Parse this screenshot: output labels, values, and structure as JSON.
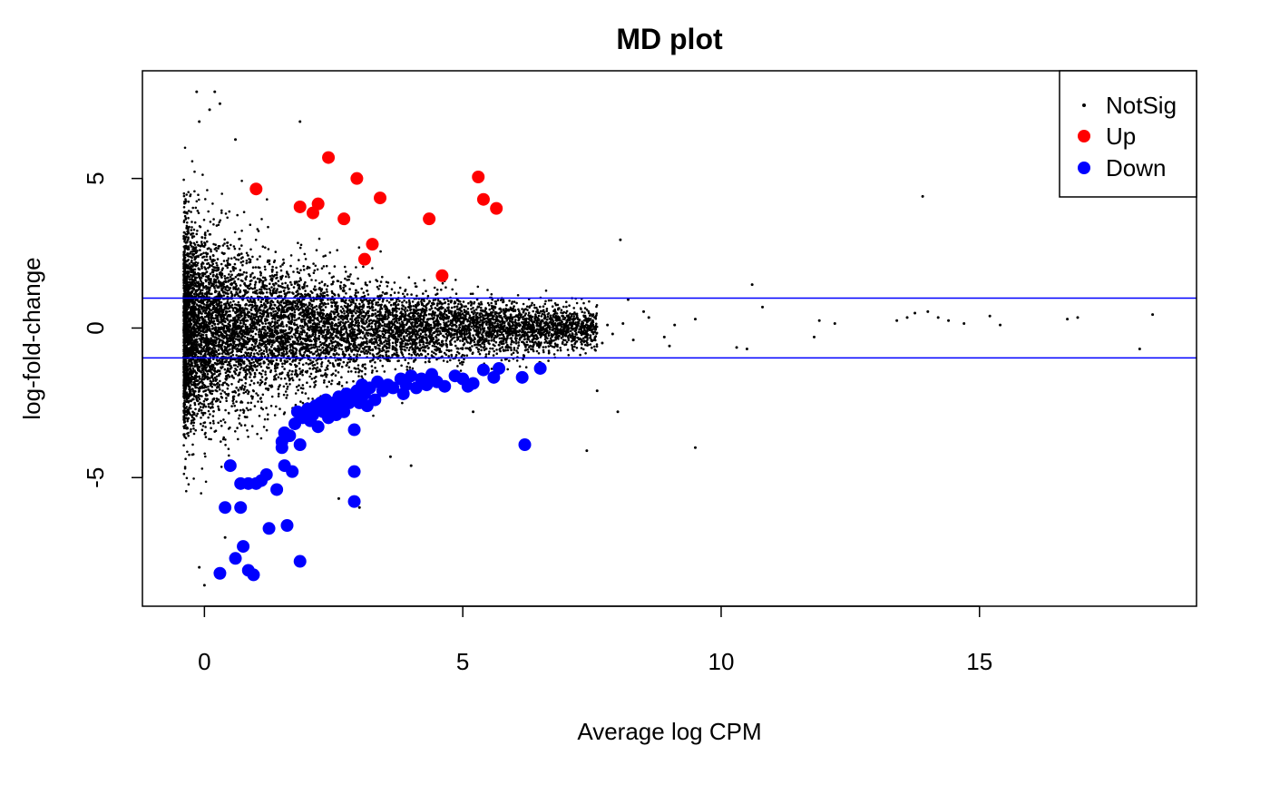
{
  "chart_data": {
    "type": "scatter",
    "title": "MD plot",
    "xlabel": "Average log CPM",
    "ylabel": "log-fold-change",
    "xlim": [
      -1.2,
      19.2
    ],
    "ylim": [
      -9.3,
      8.6
    ],
    "x_ticks": [
      0,
      5,
      10,
      15
    ],
    "y_ticks": [
      -5,
      0,
      5
    ],
    "x_tick_labels": [
      "0",
      "5",
      "10",
      "15"
    ],
    "y_tick_labels": [
      "-5",
      "0",
      "5"
    ],
    "hlines": [
      1,
      -1
    ],
    "hline_color": "#0000ff",
    "grid": false,
    "legend_position": "top-right",
    "legend": [
      {
        "label": "NotSig",
        "color": "#000000",
        "marker": "small-dot"
      },
      {
        "label": "Up",
        "color": "#ff0000",
        "marker": "dot"
      },
      {
        "label": "Down",
        "color": "#0000ff",
        "marker": "dot"
      }
    ],
    "series": [
      {
        "name": "Up",
        "color": "#ff0000",
        "points": [
          [
            1.0,
            4.65
          ],
          [
            1.85,
            4.05
          ],
          [
            2.1,
            3.85
          ],
          [
            2.2,
            4.15
          ],
          [
            2.4,
            5.7
          ],
          [
            2.7,
            3.65
          ],
          [
            2.95,
            5.0
          ],
          [
            3.1,
            2.3
          ],
          [
            3.25,
            2.8
          ],
          [
            3.4,
            4.35
          ],
          [
            4.35,
            3.65
          ],
          [
            4.6,
            1.75
          ],
          [
            5.3,
            5.05
          ],
          [
            5.4,
            4.3
          ],
          [
            5.65,
            4.0
          ]
        ]
      },
      {
        "name": "Down",
        "color": "#0000ff",
        "points": [
          [
            0.3,
            -8.2
          ],
          [
            0.4,
            -6.0
          ],
          [
            0.5,
            -4.6
          ],
          [
            0.6,
            -7.7
          ],
          [
            0.7,
            -5.2
          ],
          [
            0.7,
            -6.0
          ],
          [
            0.75,
            -7.3
          ],
          [
            0.85,
            -5.2
          ],
          [
            0.85,
            -8.1
          ],
          [
            0.95,
            -8.25
          ],
          [
            1.0,
            -5.2
          ],
          [
            1.1,
            -5.1
          ],
          [
            1.2,
            -4.9
          ],
          [
            1.25,
            -6.7
          ],
          [
            1.4,
            -5.4
          ],
          [
            1.5,
            -4.0
          ],
          [
            1.5,
            -3.8
          ],
          [
            1.55,
            -3.5
          ],
          [
            1.55,
            -4.6
          ],
          [
            1.6,
            -6.6
          ],
          [
            1.65,
            -3.6
          ],
          [
            1.7,
            -4.8
          ],
          [
            1.75,
            -3.2
          ],
          [
            1.8,
            -2.8
          ],
          [
            1.85,
            -3.9
          ],
          [
            1.85,
            -7.8
          ],
          [
            1.9,
            -3.0
          ],
          [
            2.0,
            -2.7
          ],
          [
            2.05,
            -3.1
          ],
          [
            2.1,
            -2.9
          ],
          [
            2.15,
            -2.6
          ],
          [
            2.2,
            -3.3
          ],
          [
            2.25,
            -2.5
          ],
          [
            2.3,
            -2.8
          ],
          [
            2.35,
            -2.4
          ],
          [
            2.4,
            -3.0
          ],
          [
            2.45,
            -2.7
          ],
          [
            2.5,
            -2.5
          ],
          [
            2.55,
            -2.9
          ],
          [
            2.6,
            -2.3
          ],
          [
            2.65,
            -2.6
          ],
          [
            2.7,
            -2.8
          ],
          [
            2.75,
            -2.2
          ],
          [
            2.8,
            -2.5
          ],
          [
            2.85,
            -2.3
          ],
          [
            2.9,
            -3.4
          ],
          [
            2.9,
            -4.8
          ],
          [
            2.9,
            -5.8
          ],
          [
            2.95,
            -2.1
          ],
          [
            3.0,
            -2.5
          ],
          [
            3.05,
            -1.9
          ],
          [
            3.1,
            -2.2
          ],
          [
            3.15,
            -2.6
          ],
          [
            3.2,
            -2.0
          ],
          [
            3.3,
            -2.4
          ],
          [
            3.35,
            -1.8
          ],
          [
            3.45,
            -2.1
          ],
          [
            3.55,
            -1.9
          ],
          [
            3.65,
            -2.0
          ],
          [
            3.8,
            -1.7
          ],
          [
            3.85,
            -2.2
          ],
          [
            3.9,
            -1.9
          ],
          [
            4.0,
            -1.6
          ],
          [
            4.1,
            -2.0
          ],
          [
            4.2,
            -1.7
          ],
          [
            4.3,
            -1.9
          ],
          [
            4.4,
            -1.55
          ],
          [
            4.5,
            -1.8
          ],
          [
            4.65,
            -1.95
          ],
          [
            4.85,
            -1.6
          ],
          [
            5.0,
            -1.7
          ],
          [
            5.1,
            -1.95
          ],
          [
            5.2,
            -1.85
          ],
          [
            5.4,
            -1.4
          ],
          [
            5.6,
            -1.65
          ],
          [
            5.7,
            -1.35
          ],
          [
            6.15,
            -1.65
          ],
          [
            6.2,
            -3.9
          ],
          [
            6.5,
            -1.35
          ]
        ]
      },
      {
        "name": "NotSig",
        "color": "#000000",
        "generated_points": {
          "description": "dense cloud of non-significant genes, scaled by a funnel shape",
          "count": 9000,
          "x_range": [
            -0.4,
            7.6
          ]
        },
        "points": [
          [
            -0.15,
            7.9
          ],
          [
            0.2,
            7.9
          ],
          [
            0.3,
            7.5
          ],
          [
            0.1,
            7.3
          ],
          [
            -0.1,
            6.9
          ],
          [
            1.85,
            6.9
          ],
          [
            0.6,
            6.3
          ],
          [
            8.05,
            2.95
          ],
          [
            8.2,
            0.95
          ],
          [
            10.6,
            1.45
          ],
          [
            10.8,
            0.7
          ],
          [
            13.9,
            4.4
          ],
          [
            8.5,
            0.55
          ],
          [
            8.6,
            0.35
          ],
          [
            9.1,
            0.1
          ],
          [
            9.5,
            0.3
          ],
          [
            8.9,
            -0.3
          ],
          [
            9.0,
            -0.6
          ],
          [
            10.3,
            -0.65
          ],
          [
            10.5,
            -0.7
          ],
          [
            11.8,
            -0.3
          ],
          [
            11.9,
            0.25
          ],
          [
            12.2,
            0.15
          ],
          [
            13.4,
            0.25
          ],
          [
            13.6,
            0.35
          ],
          [
            13.75,
            0.5
          ],
          [
            14.0,
            0.55
          ],
          [
            14.2,
            0.35
          ],
          [
            14.4,
            0.25
          ],
          [
            14.7,
            0.15
          ],
          [
            15.2,
            0.4
          ],
          [
            15.4,
            0.1
          ],
          [
            16.7,
            0.3
          ],
          [
            16.9,
            0.35
          ],
          [
            18.1,
            -0.7
          ],
          [
            18.35,
            0.45
          ],
          [
            8.0,
            -2.8
          ],
          [
            7.4,
            -4.1
          ],
          [
            9.5,
            -4.0
          ],
          [
            7.6,
            -2.1
          ],
          [
            7.7,
            -0.5
          ],
          [
            7.8,
            0.1
          ],
          [
            7.9,
            -0.2
          ],
          [
            8.1,
            0.15
          ],
          [
            8.3,
            -0.4
          ],
          [
            0.0,
            -8.6
          ],
          [
            -0.1,
            -8.0
          ],
          [
            0.4,
            -7.0
          ],
          [
            3.0,
            -6.0
          ],
          [
            2.6,
            -5.7
          ],
          [
            3.6,
            -4.3
          ],
          [
            4.0,
            -4.6
          ],
          [
            5.2,
            -2.8
          ]
        ]
      }
    ]
  }
}
